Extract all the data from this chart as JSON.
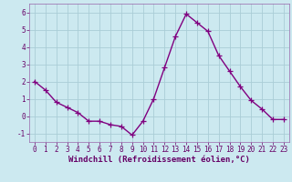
{
  "x": [
    0,
    1,
    2,
    3,
    4,
    5,
    6,
    7,
    8,
    9,
    10,
    11,
    12,
    13,
    14,
    15,
    16,
    17,
    18,
    19,
    20,
    21,
    22,
    23
  ],
  "y": [
    2.0,
    1.5,
    0.8,
    0.5,
    0.2,
    -0.3,
    -0.3,
    -0.5,
    -0.6,
    -1.1,
    -0.3,
    1.0,
    2.8,
    4.6,
    5.9,
    5.4,
    4.9,
    3.5,
    2.6,
    1.7,
    0.9,
    0.4,
    -0.2,
    -0.2
  ],
  "line_color": "#800080",
  "marker": "+",
  "marker_size": 4,
  "marker_linewidth": 0.9,
  "bg_color": "#cce9f0",
  "grid_color": "#aacdd6",
  "xlabel": "Windchill (Refroidissement éolien,°C)",
  "xlabel_fontsize": 6.5,
  "ylim": [
    -1.5,
    6.5
  ],
  "xlim": [
    -0.5,
    23.5
  ],
  "yticks": [
    -1,
    0,
    1,
    2,
    3,
    4,
    5,
    6
  ],
  "xticks": [
    0,
    1,
    2,
    3,
    4,
    5,
    6,
    7,
    8,
    9,
    10,
    11,
    12,
    13,
    14,
    15,
    16,
    17,
    18,
    19,
    20,
    21,
    22,
    23
  ],
  "tick_fontsize": 5.5,
  "line_width": 1.0,
  "spine_color": "#9966aa"
}
